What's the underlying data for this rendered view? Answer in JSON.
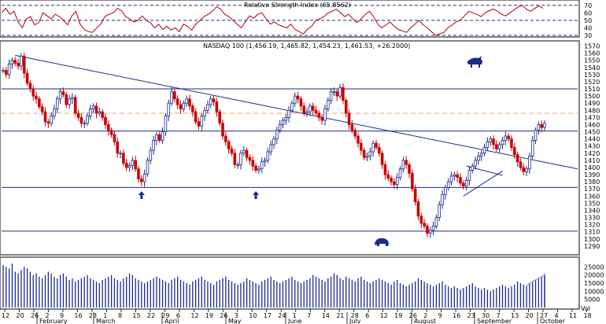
{
  "chart_data": [
    {
      "type": "line",
      "title": "Relative Strength Index (65.8562)",
      "ylim": [
        30,
        75
      ],
      "yticks": [
        30,
        40,
        50,
        60,
        70
      ],
      "reference_lines": [
        30,
        50,
        70
      ],
      "series": [
        {
          "values": [
            60,
            66,
            58,
            62,
            48,
            40,
            52,
            55,
            44,
            47,
            60,
            56,
            52,
            58,
            55,
            50,
            44,
            56,
            62,
            45,
            38,
            35,
            34,
            40,
            45,
            55,
            58,
            60,
            66,
            63,
            55,
            52,
            48,
            50,
            56,
            50,
            47,
            40,
            45,
            38,
            42,
            37,
            40,
            35,
            45,
            42,
            37,
            45,
            50,
            55,
            58,
            62,
            68,
            65,
            58,
            55,
            50,
            45,
            40,
            48,
            56,
            53,
            58,
            60,
            52,
            45,
            48,
            44,
            42,
            40,
            45,
            38,
            35,
            32,
            38,
            42,
            50,
            52,
            55,
            60,
            62,
            65,
            60,
            55,
            58,
            52,
            47,
            52,
            58,
            62,
            55,
            45,
            40,
            44,
            48,
            42,
            38,
            36,
            34,
            40,
            45,
            50,
            44,
            40,
            35,
            30,
            32,
            34,
            40,
            44,
            48,
            50,
            56,
            62,
            60,
            58,
            55,
            60,
            63,
            65,
            62,
            58,
            56,
            60,
            64,
            68,
            70,
            65,
            62,
            66,
            69,
            66
          ]
        }
      ]
    },
    {
      "type": "line",
      "title": "NASDAQ 100 (1,456.19, 1,465.82, 1,454.23, 1,461.53, +26.2000)",
      "ylim": [
        1280,
        1575
      ],
      "yticks": [
        1290,
        1300,
        1310,
        1320,
        1330,
        1340,
        1350,
        1360,
        1370,
        1380,
        1390,
        1400,
        1410,
        1420,
        1430,
        1440,
        1450,
        1460,
        1470,
        1480,
        1490,
        1500,
        1510,
        1520,
        1530,
        1540,
        1550,
        1560,
        1570
      ],
      "reference_lines": [
        1311,
        1372,
        1451,
        1510
      ],
      "dashed_reference_line": 1476,
      "trendlines": [
        {
          "from": {
            "idx": 4,
            "y": 1557
          },
          "to": {
            "idx": 184,
            "y": 1398
          }
        },
        {
          "from": {
            "idx": 153,
            "y": 1360
          },
          "to": {
            "idx": 166,
            "y": 1395
          }
        },
        {
          "from": {
            "idx": 154,
            "y": 1402
          },
          "to": {
            "idx": 166,
            "y": 1389
          }
        }
      ],
      "arrows_up_at": [
        {
          "idx": 46,
          "y": 1367
        },
        {
          "idx": 84,
          "y": 1367
        }
      ],
      "series": [
        {
          "name": "Close",
          "values": [
            1536,
            1530,
            1545,
            1550,
            1546,
            1542,
            1556,
            1532,
            1518,
            1510,
            1500,
            1496,
            1485,
            1478,
            1464,
            1462,
            1472,
            1482,
            1496,
            1506,
            1502,
            1488,
            1496,
            1498,
            1476,
            1470,
            1462,
            1462,
            1472,
            1482,
            1486,
            1476,
            1478,
            1470,
            1460,
            1452,
            1446,
            1436,
            1420,
            1420,
            1406,
            1400,
            1403,
            1410,
            1398,
            1384,
            1380,
            1391,
            1410,
            1424,
            1438,
            1446,
            1438,
            1450,
            1472,
            1490,
            1506,
            1496,
            1488,
            1482,
            1490,
            1496,
            1486,
            1478,
            1464,
            1458,
            1472,
            1480,
            1488,
            1496,
            1492,
            1478,
            1462,
            1444,
            1436,
            1426,
            1420,
            1404,
            1404,
            1420,
            1424,
            1414,
            1410,
            1402,
            1396,
            1398,
            1408,
            1410,
            1422,
            1432,
            1440,
            1452,
            1460,
            1466,
            1470,
            1480,
            1490,
            1500,
            1496,
            1486,
            1476,
            1478,
            1486,
            1480,
            1476,
            1470,
            1466,
            1482,
            1494,
            1506,
            1506,
            1500,
            1512,
            1494,
            1476,
            1460,
            1452,
            1444,
            1434,
            1424,
            1414,
            1416,
            1422,
            1434,
            1428,
            1420,
            1404,
            1390,
            1385,
            1380,
            1376,
            1386,
            1398,
            1410,
            1404,
            1392,
            1370,
            1352,
            1332,
            1322,
            1318,
            1308,
            1312,
            1318,
            1330,
            1348,
            1362,
            1372,
            1380,
            1388,
            1390,
            1386,
            1378,
            1374,
            1382,
            1396,
            1402,
            1410,
            1416,
            1420,
            1428,
            1436,
            1440,
            1432,
            1426,
            1432,
            1438,
            1444,
            1440,
            1428,
            1418,
            1408,
            1400,
            1394,
            1398,
            1416,
            1438,
            1452,
            1460,
            1456,
            1462
          ]
        }
      ],
      "annotations": [
        "bull-icon",
        "bear-icon"
      ]
    },
    {
      "type": "bar",
      "title": "",
      "ylim": [
        0,
        30000
      ],
      "yticks": [
        5000,
        10000,
        15000,
        20000,
        25000
      ],
      "series": [
        {
          "name": "Volume",
          "values": [
            26000,
            25000,
            24000,
            27000,
            22000,
            21000,
            23000,
            25000,
            24000,
            22000,
            20000,
            21000,
            19000,
            18000,
            20000,
            22000,
            21000,
            19000,
            18000,
            20000,
            21000,
            19000,
            17000,
            18000,
            16000,
            17000,
            18000,
            19000,
            20000,
            18000,
            17000,
            16000,
            15000,
            17000,
            18000,
            19000,
            20000,
            18000,
            17000,
            16000,
            18000,
            19000,
            21000,
            20000,
            18000,
            17000,
            16000,
            15000,
            16000,
            17000,
            18000,
            19000,
            18000,
            17000,
            16000,
            15000,
            17000,
            18000,
            19000,
            17000,
            16000,
            15000,
            14000,
            16000,
            17000,
            18000,
            19000,
            17000,
            16000,
            15000,
            14000,
            16000,
            17000,
            18000,
            19000,
            17000,
            16000,
            15000,
            14000,
            15000,
            16000,
            18000,
            17000,
            16000,
            15000,
            14000,
            16000,
            17000,
            18000,
            19000,
            17000,
            16000,
            15000,
            16000,
            17000,
            18000,
            19000,
            17000,
            16000,
            15000,
            16000,
            17000,
            18000,
            20000,
            19000,
            18000,
            17000,
            16000,
            18000,
            19000,
            21000,
            20000,
            18000,
            17000,
            19000,
            18000,
            17000,
            16000,
            18000,
            19000,
            17000,
            16000,
            15000,
            16000,
            17000,
            18000,
            17000,
            16000,
            15000,
            14000,
            16000,
            17000,
            15000,
            14000,
            13000,
            14000,
            15000,
            16000,
            18000,
            17000,
            16000,
            15000,
            14000,
            13000,
            14000,
            15000,
            16000,
            14000,
            13000,
            12000,
            13000,
            12000,
            11000,
            12000,
            13000,
            14000,
            15000,
            13000,
            12000,
            11000,
            12000,
            11000,
            10000,
            11000,
            12000,
            13000,
            14000,
            13000,
            12000,
            13000,
            14000,
            16000,
            15000,
            14000,
            13000,
            15000,
            16000,
            17000,
            18000,
            19000,
            20000,
            21000
          ]
        }
      ],
      "volume_ma_label": "Vol"
    }
  ],
  "x_axis": {
    "day_ticks": [
      "12",
      "20",
      "26",
      "2",
      "9",
      "16",
      "23",
      "1",
      "8",
      "15",
      "22",
      "29",
      "6",
      "12",
      "19",
      "26",
      "3",
      "10",
      "17",
      "24",
      "1",
      "7",
      "14",
      "21",
      "28",
      "6",
      "12",
      "19",
      "26",
      "2",
      "9",
      "16",
      "23",
      "30",
      "7",
      "13",
      "20",
      "27",
      "4",
      "11",
      "18"
    ],
    "months": [
      "February",
      "March",
      "April",
      "May",
      "June",
      "July",
      "August",
      "September",
      "October"
    ]
  }
}
